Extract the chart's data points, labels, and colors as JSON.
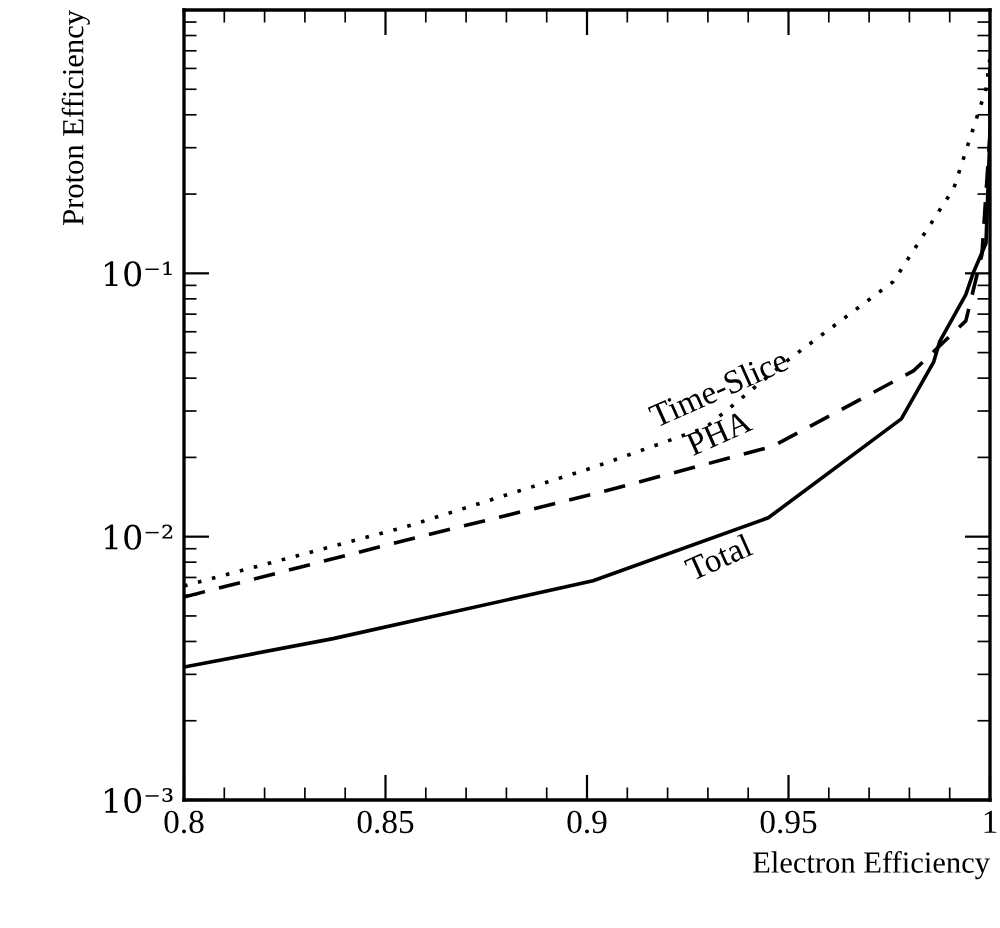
{
  "chart_data": {
    "type": "line",
    "xlabel": "Electron Efficiency",
    "ylabel": "Proton Efficiency",
    "log": "y",
    "grid": false,
    "legend": false,
    "xlim": [
      0.8,
      1.0
    ],
    "ylim": [
      0.001,
      1
    ],
    "xticks": [
      0.8,
      0.85,
      0.9,
      0.95,
      1
    ],
    "yticks": [
      {
        "value": 0.001,
        "label": "10⁻³"
      },
      {
        "value": 0.01,
        "label": "10⁻²"
      },
      {
        "value": 0.1,
        "label": "10⁻¹"
      }
    ],
    "series": [
      {
        "name": "Time-Slice",
        "color": "#000000",
        "line_style": "dotted",
        "x": [
          0.8,
          0.855,
          0.9015,
          0.9295,
          0.95,
          0.976,
          0.991,
          0.999,
          1.0
        ],
        "values": [
          0.0065,
          0.0109,
          0.0183,
          0.026,
          0.047,
          0.093,
          0.21,
          0.5,
          0.66
        ]
      },
      {
        "name": "PHA",
        "color": "#000000",
        "line_style": "dashed",
        "x": [
          0.8,
          0.855,
          0.9015,
          0.946,
          0.981,
          0.994,
          0.998,
          1.0,
          1.0
        ],
        "values": [
          0.0059,
          0.0097,
          0.0145,
          0.022,
          0.0426,
          0.066,
          0.118,
          0.34,
          0.54
        ]
      },
      {
        "name": "Total",
        "color": "#000000",
        "line_style": "solid",
        "x": [
          0.8,
          0.837,
          0.9015,
          0.945,
          0.978,
          0.986,
          0.9875,
          0.994,
          0.9958,
          0.999,
          1.0,
          1.0
        ],
        "values": [
          0.0032,
          0.0041,
          0.0068,
          0.0118,
          0.028,
          0.046,
          0.055,
          0.083,
          0.1,
          0.13,
          0.34,
          0.6
        ]
      }
    ]
  }
}
